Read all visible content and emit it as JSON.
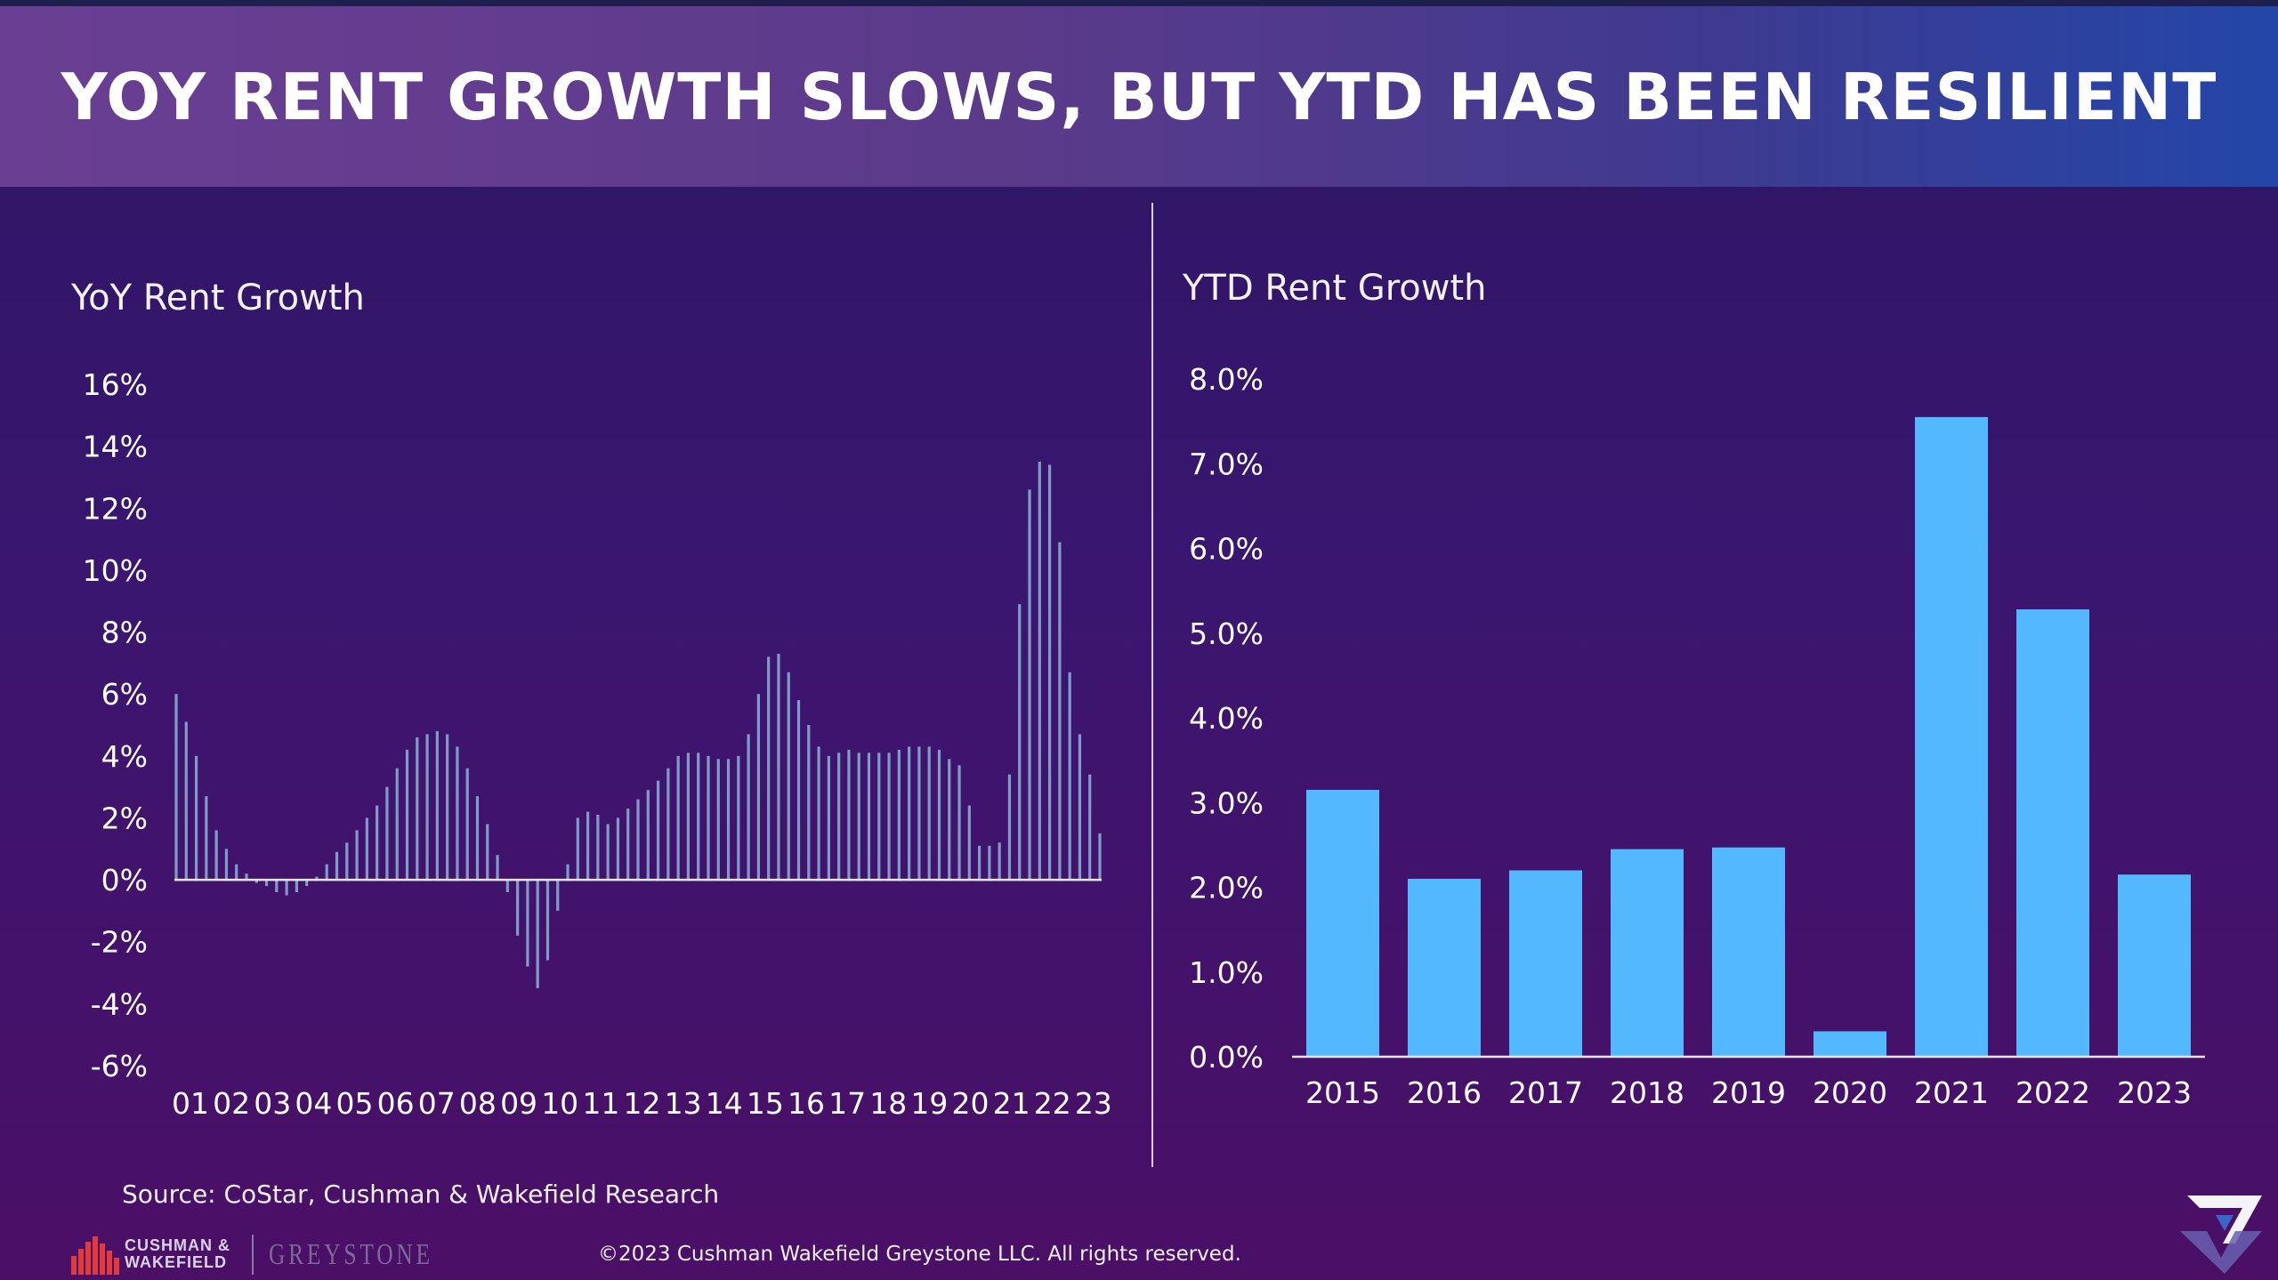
{
  "header": {
    "title": "YOY RENT GROWTH SLOWS, BUT YTD HAS BEEN RESILIENT"
  },
  "left_chart_title": "YoY Rent Growth",
  "right_chart_title": "YTD Rent Growth",
  "footer": {
    "source": "Source: CoStar, Cushman & Wakefield Research",
    "copyright": "©2023 Cushman Wakefield Greystone LLC. All rights reserved.",
    "cw_logo_text_line1": "CUSHMAN &",
    "cw_logo_text_line2": "WAKEFIELD",
    "greystone_logo_text": "GREYSTONE"
  },
  "colors": {
    "line_bar": "#7f9cc8",
    "ytd_bar": "#54b8ff",
    "axis": "#e6e6ee"
  },
  "chart_data": [
    {
      "type": "bar",
      "title": "YoY Rent Growth",
      "xlabel": "",
      "ylabel": "",
      "ylim": [
        -6,
        16
      ],
      "yticks": [
        "16%",
        "14%",
        "12%",
        "10%",
        "8%",
        "6%",
        "4%",
        "2%",
        "0%",
        "-2%",
        "-4%",
        "-6%"
      ],
      "ytick_values": [
        16,
        14,
        12,
        10,
        8,
        6,
        4,
        2,
        0,
        -2,
        -4,
        -6
      ],
      "xticks": [
        "01",
        "02",
        "03",
        "04",
        "05",
        "06",
        "07",
        "08",
        "09",
        "10",
        "11",
        "12",
        "13",
        "14",
        "15",
        "16",
        "17",
        "18",
        "19",
        "20",
        "21",
        "22",
        "23"
      ],
      "values_per_year": 4,
      "values": [
        6.0,
        5.1,
        4.0,
        2.7,
        1.6,
        1.0,
        0.5,
        0.2,
        -0.1,
        -0.2,
        -0.4,
        -0.5,
        -0.4,
        -0.2,
        0.1,
        0.5,
        0.9,
        1.2,
        1.6,
        2.0,
        2.4,
        3.0,
        3.6,
        4.2,
        4.6,
        4.7,
        4.8,
        4.7,
        4.3,
        3.6,
        2.7,
        1.8,
        0.8,
        -0.4,
        -1.8,
        -2.8,
        -3.5,
        -2.6,
        -1.0,
        0.5,
        2.0,
        2.2,
        2.1,
        1.8,
        2.0,
        2.3,
        2.6,
        2.9,
        3.2,
        3.6,
        4.0,
        4.1,
        4.1,
        4.0,
        3.9,
        3.9,
        4.0,
        4.7,
        6.0,
        7.2,
        7.3,
        6.7,
        5.8,
        5.0,
        4.3,
        4.0,
        4.1,
        4.2,
        4.1,
        4.1,
        4.1,
        4.1,
        4.2,
        4.3,
        4.3,
        4.3,
        4.2,
        3.9,
        3.7,
        2.4,
        1.1,
        1.1,
        1.2,
        3.4,
        8.9,
        12.6,
        13.5,
        13.4,
        10.9,
        6.7,
        4.7,
        3.4,
        1.5
      ]
    },
    {
      "type": "bar",
      "title": "YTD Rent Growth",
      "xlabel": "",
      "ylabel": "",
      "ylim": [
        0,
        8
      ],
      "yticks": [
        "8.0%",
        "7.0%",
        "6.0%",
        "5.0%",
        "4.0%",
        "3.0%",
        "2.0%",
        "1.0%",
        "0.0%"
      ],
      "ytick_values": [
        8,
        7,
        6,
        5,
        4,
        3,
        2,
        1,
        0
      ],
      "categories": [
        "2015",
        "2016",
        "2017",
        "2018",
        "2019",
        "2020",
        "2021",
        "2022",
        "2023"
      ],
      "values": [
        3.15,
        2.1,
        2.2,
        2.45,
        2.47,
        0.3,
        7.55,
        5.28,
        2.15
      ]
    }
  ]
}
